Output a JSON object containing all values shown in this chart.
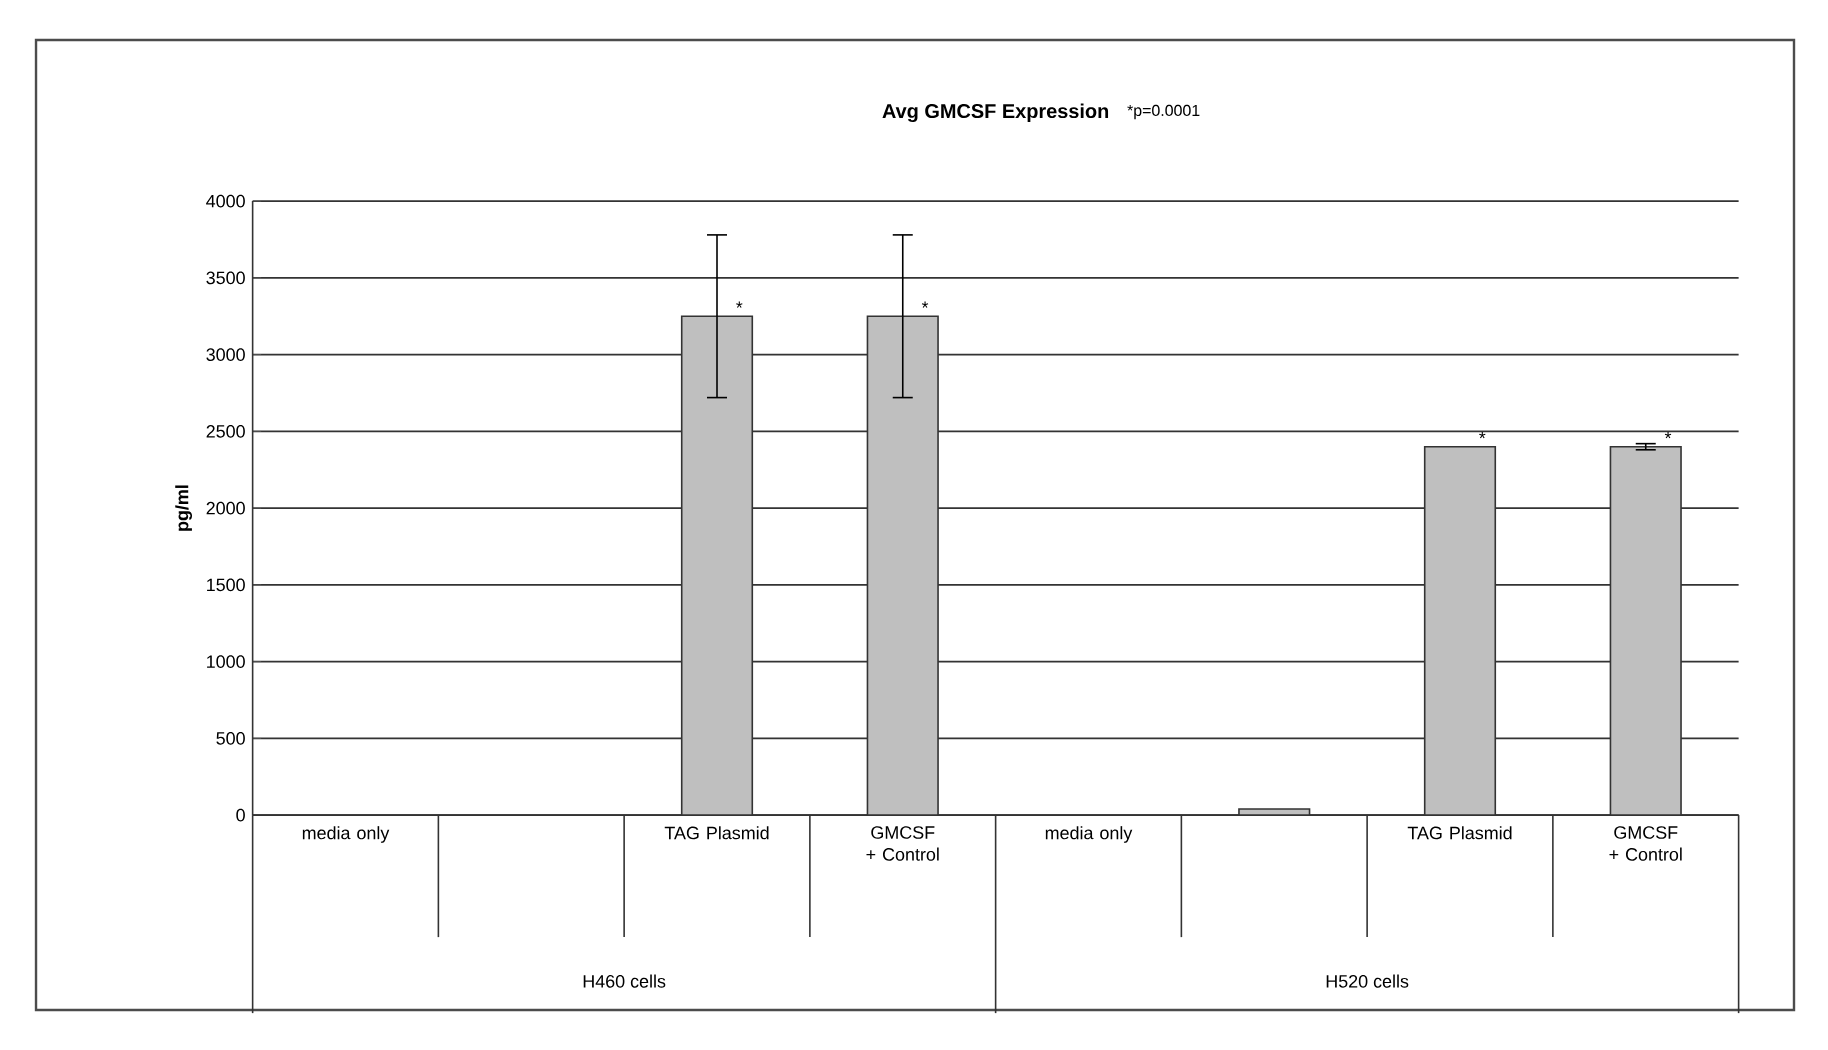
{
  "chart_data": {
    "type": "bar",
    "title": "Avg GMCSF Expression",
    "ylabel": "pg/ml",
    "categories": [
      "media only",
      null,
      "TAG Plasmid",
      "GMCSF + Control",
      "media only",
      null,
      "TAG Plasmid",
      "GMCSF + Control"
    ],
    "values": [
      0,
      0,
      3250,
      3250,
      0,
      40,
      2400,
      2400
    ],
    "errors": [
      null,
      null,
      530,
      530,
      null,
      null,
      null,
      20
    ],
    "value_labels": [
      null,
      null,
      "*",
      "*",
      null,
      null,
      "*",
      "*"
    ],
    "color": "#bfbfbf",
    "ylim": [
      0,
      4000
    ],
    "yticks": [
      0,
      500,
      1000,
      1500,
      2000,
      2500,
      3000,
      3500,
      4000
    ],
    "grid": "y",
    "annotations": [
      "H460 cells",
      "H520 cells",
      "*p=0.0001"
    ]
  }
}
